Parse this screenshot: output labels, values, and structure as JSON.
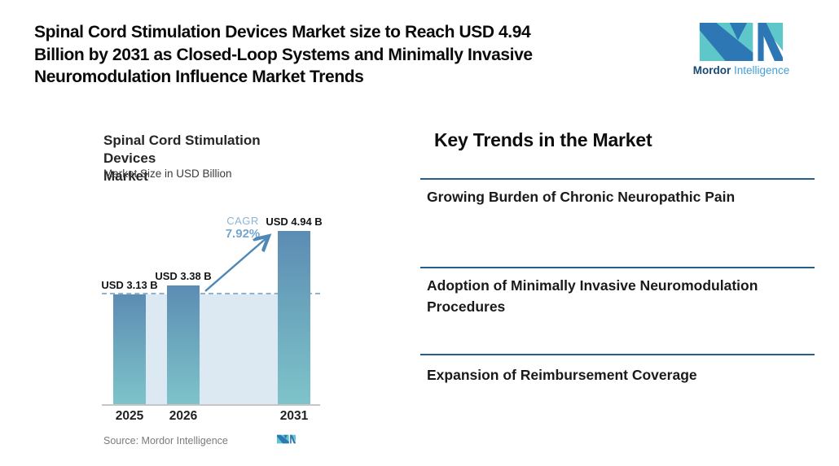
{
  "header": {
    "title_lines": [
      "Spinal Cord Stimulation Devices Market size to Reach USD 4.94",
      "Billion by 2031 as Closed-Loop Systems and Minimally Invasive",
      "Neuromodulation Influence Market Trends"
    ]
  },
  "brand": {
    "name_bold": "Mordor",
    "name_light": "Intelligence"
  },
  "chart": {
    "title_line1": "Spinal Cord Stimulation Devices",
    "title_line2": "Market",
    "subtitle": "Market Size in USD Billion",
    "source": "Source: Mordor Intelligence"
  },
  "chart_data": {
    "type": "bar",
    "title": "Spinal Cord Stimulation Devices Market",
    "ylabel": "Market Size in USD Billion",
    "categories": [
      "2025",
      "2026",
      "2031"
    ],
    "values": [
      3.13,
      3.38,
      4.94
    ],
    "bar_labels": [
      "USD 3.13 B",
      "USD 3.38 B",
      "USD 4.94 B"
    ],
    "cagr_label": "CAGR",
    "cagr_value": "7.92%",
    "baseline_value": 3.13,
    "ylim": [
      0,
      5.5
    ],
    "grid": false,
    "legend": "none",
    "annotations": [
      "dashed reference line at 2025 value",
      "growth arrow from 2026 bar to 2031 bar"
    ],
    "source": "Source: Mordor Intelligence"
  },
  "trends": {
    "title": "Key Trends in the Market",
    "items": [
      "Growing Burden of Chronic Neuropathic Pain",
      "Adoption of Minimally Invasive Neuromodulation Procedures",
      "Expansion of Reimbursement Coverage"
    ]
  },
  "colors": {
    "bar_gradient_top": "#5c8cb3",
    "bar_gradient_bottom": "#7ec3ca",
    "band_fill": "#dde9f2",
    "dashed_line": "#8fb3cf",
    "arrow": "#4e88b7",
    "cagr_text": "#8cb4d8",
    "divider": "#20618a",
    "logo_teal": "#5ec7ca",
    "logo_blue": "#2e77b5"
  }
}
